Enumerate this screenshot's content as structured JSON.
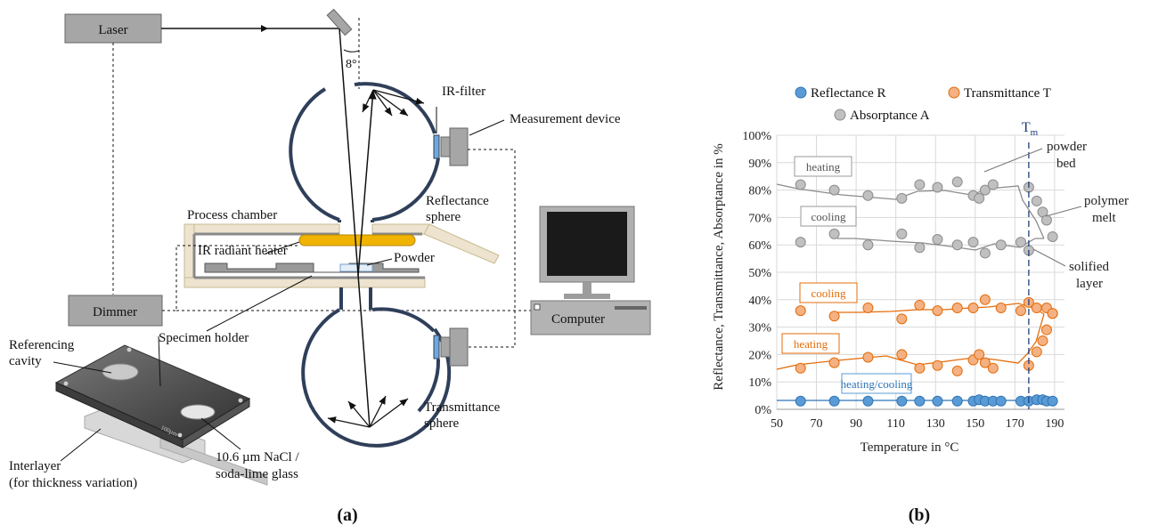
{
  "panel_a": {
    "caption": "(a)",
    "labels": {
      "laser": "Laser",
      "angle": "8°",
      "ir_filter": "IR-filter",
      "measurement_device": "Measurement device",
      "reflectance_sphere_1": "Reflectance",
      "reflectance_sphere_2": "sphere",
      "process_chamber": "Process chamber",
      "ir_heater": "IR radiant heater",
      "powder": "Powder",
      "dimmer": "Dimmer",
      "computer": "Computer",
      "specimen_holder": "Specimen holder",
      "referencing_1": "Referencing",
      "referencing_2": "cavity",
      "transmittance_1": "Transmittance",
      "transmittance_2": "sphere",
      "interlayer_1": "Interlayer",
      "interlayer_2": "(for thickness variation)",
      "nacl_1": "10.6 µm NaCl /",
      "nacl_2": "soda-lime glass",
      "plate_mark": "100µm"
    },
    "colors": {
      "sphere": "#2f3f5a",
      "heater": "#f0b400",
      "box": "#a6a6a6"
    }
  },
  "panel_b": {
    "caption": "(b)",
    "annotations": {
      "tm": "T",
      "tm_sub": "m",
      "powder_bed_1": "powder",
      "powder_bed_2": "bed",
      "polymer_melt_1": "polymer",
      "polymer_melt_2": "melt",
      "solified_1": "solified",
      "solified_2": "layer",
      "heating_gray": "heating",
      "cooling_gray": "cooling",
      "cooling_orange": "cooling",
      "heating_orange": "heating",
      "heating_cooling_blue": "heating/cooling"
    }
  },
  "chart_data": {
    "type": "scatter",
    "xlabel": "Temperature in °C",
    "ylabel": "Reflectance, Transmittance, Absorptance in %",
    "xlim": [
      50,
      195
    ],
    "ylim": [
      0,
      100
    ],
    "xticks": [
      50,
      70,
      90,
      110,
      130,
      150,
      170,
      190
    ],
    "yticks": [
      0,
      10,
      20,
      30,
      40,
      50,
      60,
      70,
      80,
      90,
      100
    ],
    "ytick_labels": [
      "0%",
      "10%",
      "20%",
      "30%",
      "40%",
      "50%",
      "60%",
      "70%",
      "80%",
      "90%",
      "100%"
    ],
    "tm_x": 177,
    "grid": true,
    "legend": "top",
    "series": [
      {
        "name": "Reflectance R",
        "color": "#5b9bd5",
        "edge": "#2e75b6",
        "x": [
          62,
          79,
          96,
          113,
          122,
          131,
          141,
          149,
          152,
          155,
          159,
          163,
          173,
          177,
          181,
          184,
          186,
          189
        ],
        "y": [
          3,
          3,
          3,
          3,
          3,
          3,
          3,
          3,
          3.5,
          3,
          3,
          3,
          3,
          3,
          3.5,
          3.5,
          3,
          3
        ]
      },
      {
        "name": "Transmittance T",
        "color": "#f4b183",
        "edge": "#e46c0a",
        "x": [
          62,
          79,
          96,
          113,
          122,
          131,
          141,
          149,
          152,
          155,
          159,
          177,
          181,
          184,
          186,
          189,
          62,
          79,
          96,
          113,
          122,
          131,
          141,
          149,
          155,
          163,
          173,
          177,
          181,
          186,
          189
        ],
        "y": [
          15,
          17,
          19,
          20,
          15,
          16,
          14,
          18,
          20,
          17,
          15,
          16,
          21,
          25,
          29,
          35,
          36,
          34,
          37,
          33,
          38,
          36,
          37,
          37,
          40,
          37,
          36,
          39,
          37,
          37,
          35
        ]
      },
      {
        "name": "Absorptance A",
        "color": "#c0c0c0",
        "edge": "#8c8c8c",
        "x": [
          62,
          79,
          96,
          113,
          122,
          131,
          141,
          149,
          152,
          155,
          159,
          177,
          181,
          184,
          186,
          189,
          62,
          79,
          96,
          113,
          122,
          131,
          141,
          149,
          155,
          163,
          173,
          177
        ],
        "y": [
          82,
          80,
          78,
          77,
          82,
          81,
          83,
          78,
          77,
          80,
          82,
          81,
          76,
          72,
          69,
          63,
          61,
          64,
          60,
          64,
          59,
          62,
          60,
          61,
          57,
          60,
          61,
          58
        ]
      }
    ]
  }
}
